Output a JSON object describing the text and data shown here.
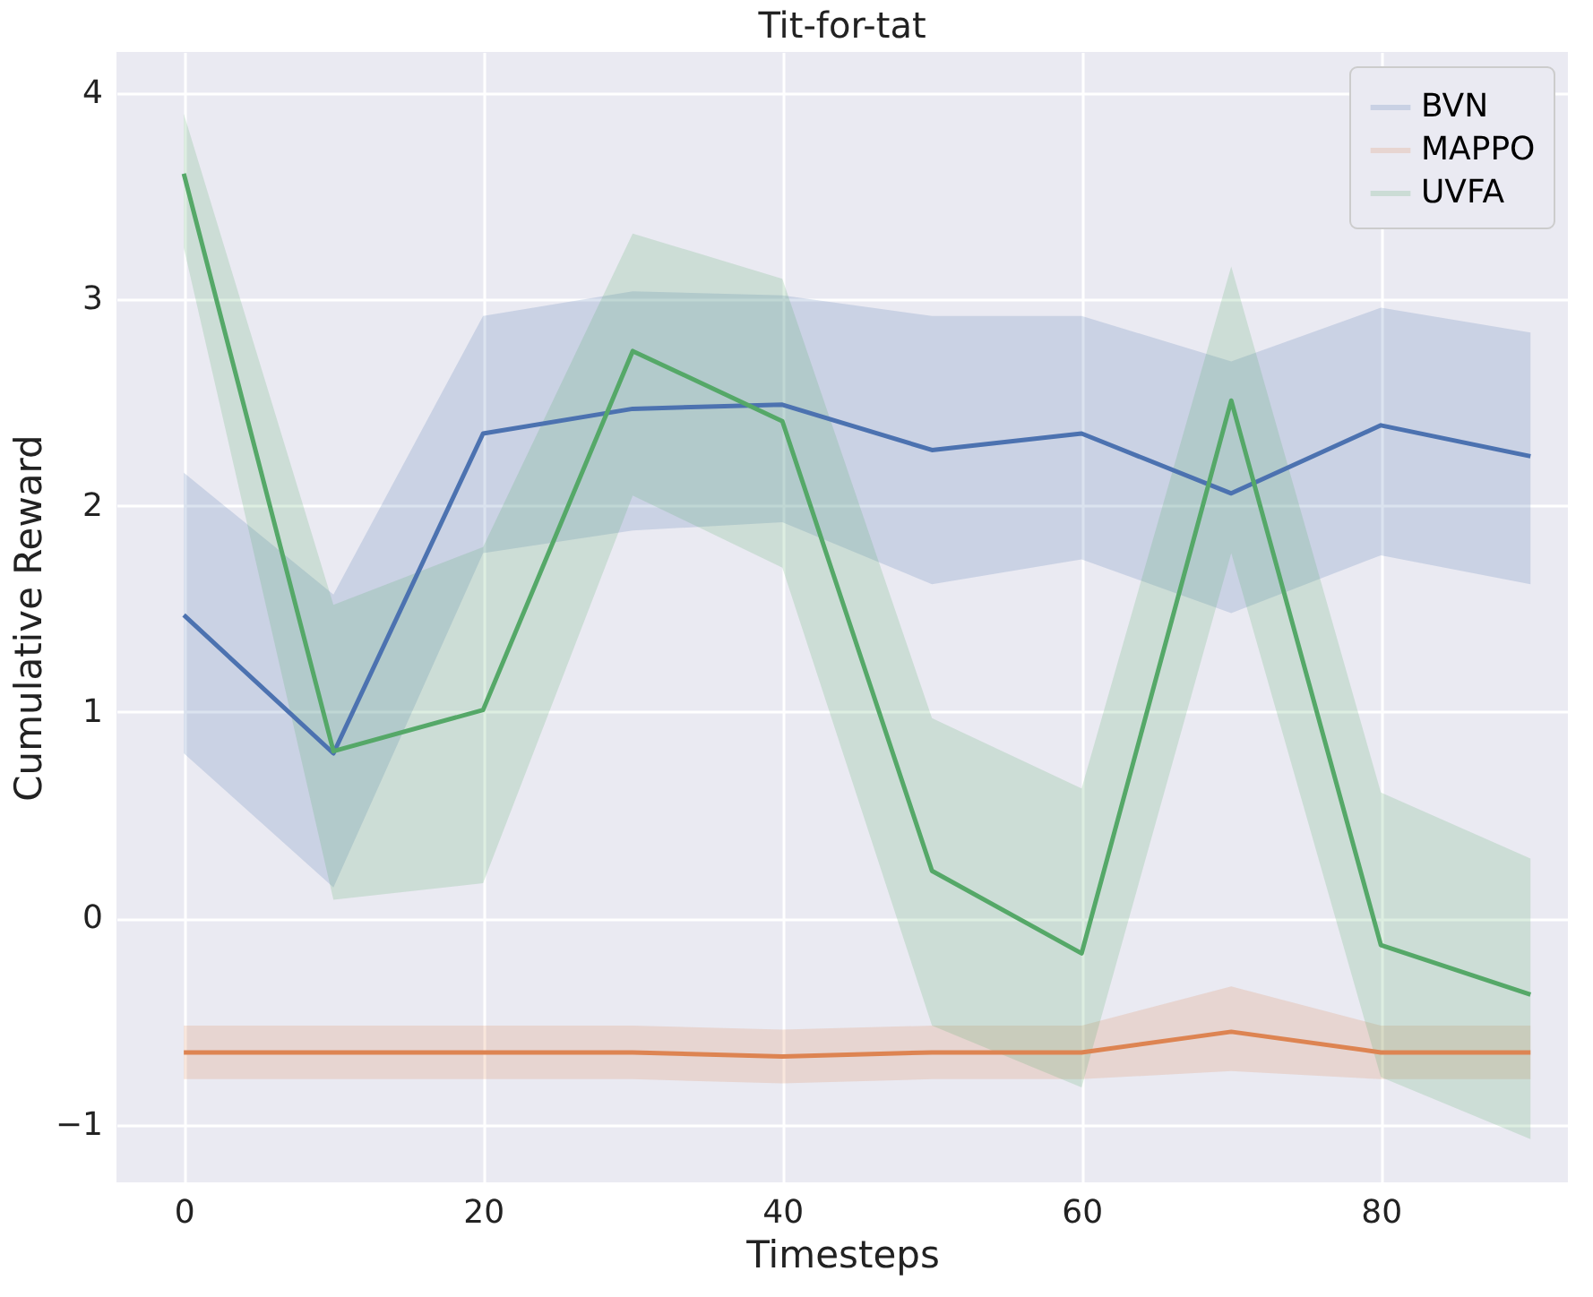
{
  "chart_data": {
    "type": "line",
    "title": "Tit-for-tat",
    "xlabel": "Timesteps",
    "ylabel": "Cumulative Reward",
    "x": [
      0,
      10,
      20,
      30,
      40,
      50,
      60,
      70,
      80,
      90
    ],
    "series": [
      {
        "name": "BVN",
        "color": "#4c72b0",
        "values": [
          1.47,
          0.8,
          2.35,
          2.47,
          2.49,
          2.27,
          2.35,
          2.06,
          2.39,
          2.24
        ],
        "lower": [
          0.8,
          0.15,
          1.77,
          1.88,
          1.92,
          1.62,
          1.74,
          1.48,
          1.76,
          1.62
        ],
        "upper": [
          2.16,
          1.57,
          2.92,
          3.04,
          3.02,
          2.92,
          2.92,
          2.7,
          2.96,
          2.84
        ]
      },
      {
        "name": "MAPPO",
        "color": "#dd8452",
        "values": [
          -0.65,
          -0.65,
          -0.65,
          -0.65,
          -0.67,
          -0.65,
          -0.65,
          -0.55,
          -0.65,
          -0.65
        ],
        "lower": [
          -0.78,
          -0.78,
          -0.78,
          -0.78,
          -0.8,
          -0.78,
          -0.78,
          -0.74,
          -0.78,
          -0.78
        ],
        "upper": [
          -0.52,
          -0.52,
          -0.52,
          -0.52,
          -0.54,
          -0.52,
          -0.52,
          -0.33,
          -0.52,
          -0.52
        ]
      },
      {
        "name": "UVFA",
        "color": "#55a868",
        "values": [
          3.61,
          0.81,
          1.01,
          2.75,
          2.41,
          0.23,
          -0.17,
          2.51,
          -0.13,
          -0.37
        ],
        "lower": [
          3.25,
          0.09,
          0.17,
          2.05,
          1.7,
          -0.52,
          -0.82,
          1.77,
          -0.77,
          -1.07
        ],
        "upper": [
          3.9,
          1.52,
          1.8,
          3.32,
          3.1,
          0.97,
          0.63,
          3.16,
          0.61,
          0.29
        ]
      }
    ],
    "xlim": [
      -4.5,
      92.5
    ],
    "ylim": [
      -1.28,
      4.2
    ],
    "xticks": [
      0,
      20,
      40,
      60,
      80
    ],
    "yticks": [
      {
        "value": -1,
        "label": "−1"
      },
      0,
      1,
      2,
      3,
      4
    ],
    "grid": true,
    "legend": "top right",
    "marker": "none",
    "line_style": "solid"
  }
}
